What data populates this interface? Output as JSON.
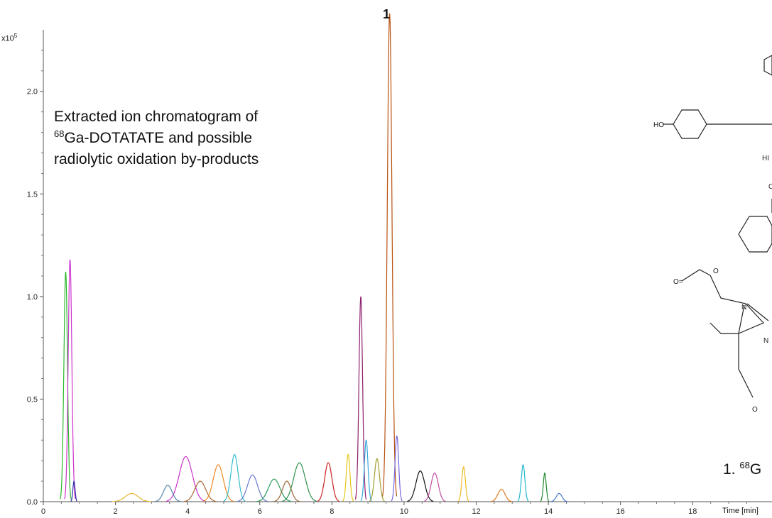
{
  "chart_data": {
    "type": "line",
    "xlabel": "Time [min]",
    "y_exponent": "x10",
    "y_exponent_power": "5",
    "xlim": [
      0,
      20.2
    ],
    "ylim": [
      0,
      2.3
    ],
    "x_ticks": [
      {
        "value": 0,
        "label": "0"
      },
      {
        "value": 2,
        "label": "2"
      },
      {
        "value": 4,
        "label": "4"
      },
      {
        "value": 6,
        "label": "6"
      },
      {
        "value": 8,
        "label": "8"
      },
      {
        "value": 10,
        "label": "10"
      },
      {
        "value": 12,
        "label": "12"
      },
      {
        "value": 14,
        "label": "14"
      },
      {
        "value": 16,
        "label": "16"
      },
      {
        "value": 18,
        "label": "18"
      }
    ],
    "y_ticks": [
      {
        "value": 0,
        "label": "0.0"
      },
      {
        "value": 0.5,
        "label": "0.5"
      },
      {
        "value": 1.0,
        "label": "1.0"
      },
      {
        "value": 1.5,
        "label": "1.5"
      },
      {
        "value": 2.0,
        "label": "2.0"
      }
    ],
    "peak_label": "1",
    "annotation_lines": [
      {
        "sup": "",
        "text": "Extracted ion chromatogram of"
      },
      {
        "sup": "68",
        "text": "Ga-DOTATATE and possible"
      },
      {
        "sup": "",
        "text": "radiolytic oxidation by-products"
      }
    ],
    "structure_label": {
      "prefix": "1. ",
      "sup": "68",
      "text": "G"
    },
    "series": [
      {
        "color": "#2db82d",
        "peaks": [
          [
            0.62,
            1.12,
            0.05
          ]
        ]
      },
      {
        "color": "#cc33cc",
        "peaks": [
          [
            0.74,
            1.18,
            0.05
          ],
          [
            3.95,
            0.22,
            0.18
          ]
        ]
      },
      {
        "color": "#3333aa",
        "peaks": [
          [
            0.85,
            0.1,
            0.03
          ]
        ]
      },
      {
        "color": "#e6b833",
        "peaks": [
          [
            2.45,
            0.04,
            0.18
          ]
        ]
      },
      {
        "color": "#5588aa",
        "peaks": [
          [
            3.45,
            0.08,
            0.12
          ]
        ]
      },
      {
        "color": "#aa6633",
        "peaks": [
          [
            4.35,
            0.1,
            0.15
          ]
        ]
      },
      {
        "color": "#ee8822",
        "peaks": [
          [
            4.85,
            0.18,
            0.14
          ]
        ]
      },
      {
        "color": "#33bbcc",
        "peaks": [
          [
            5.3,
            0.23,
            0.1
          ]
        ]
      },
      {
        "color": "#6677cc",
        "peaks": [
          [
            5.8,
            0.13,
            0.14
          ]
        ]
      },
      {
        "color": "#2a9a5a",
        "peaks": [
          [
            6.4,
            0.11,
            0.16
          ]
        ]
      },
      {
        "color": "#996633",
        "peaks": [
          [
            6.75,
            0.1,
            0.12
          ]
        ]
      },
      {
        "color": "#2f8f4f",
        "peaks": [
          [
            7.1,
            0.19,
            0.16
          ]
        ]
      },
      {
        "color": "#cc2222",
        "peaks": [
          [
            7.9,
            0.19,
            0.1
          ]
        ]
      },
      {
        "color": "#e6c81a",
        "peaks": [
          [
            8.45,
            0.23,
            0.05
          ]
        ]
      },
      {
        "color": "#8e1f6e",
        "peaks": [
          [
            8.8,
            1.0,
            0.05
          ]
        ]
      },
      {
        "color": "#33aadd",
        "peaks": [
          [
            8.95,
            0.3,
            0.05
          ]
        ]
      },
      {
        "color": "#b8520f",
        "peaks": [
          [
            9.6,
            2.38,
            0.065
          ]
        ]
      },
      {
        "color": "#a0a030",
        "peaks": [
          [
            9.25,
            0.21,
            0.07
          ]
        ]
      },
      {
        "color": "#7766dd",
        "peaks": [
          [
            9.8,
            0.32,
            0.05
          ]
        ]
      },
      {
        "color": "#111111",
        "peaks": [
          [
            10.45,
            0.15,
            0.12
          ]
        ]
      },
      {
        "color": "#c050a0",
        "peaks": [
          [
            10.85,
            0.14,
            0.1
          ]
        ]
      },
      {
        "color": "#eebb22",
        "peaks": [
          [
            11.65,
            0.17,
            0.05
          ]
        ]
      },
      {
        "color": "#dd7a22",
        "peaks": [
          [
            12.7,
            0.06,
            0.1
          ]
        ]
      },
      {
        "color": "#22b8cc",
        "peaks": [
          [
            13.3,
            0.18,
            0.05
          ]
        ]
      },
      {
        "color": "#22882e",
        "peaks": [
          [
            13.9,
            0.14,
            0.04
          ]
        ]
      },
      {
        "color": "#4477cc",
        "peaks": [
          [
            14.3,
            0.04,
            0.08
          ]
        ]
      }
    ]
  }
}
